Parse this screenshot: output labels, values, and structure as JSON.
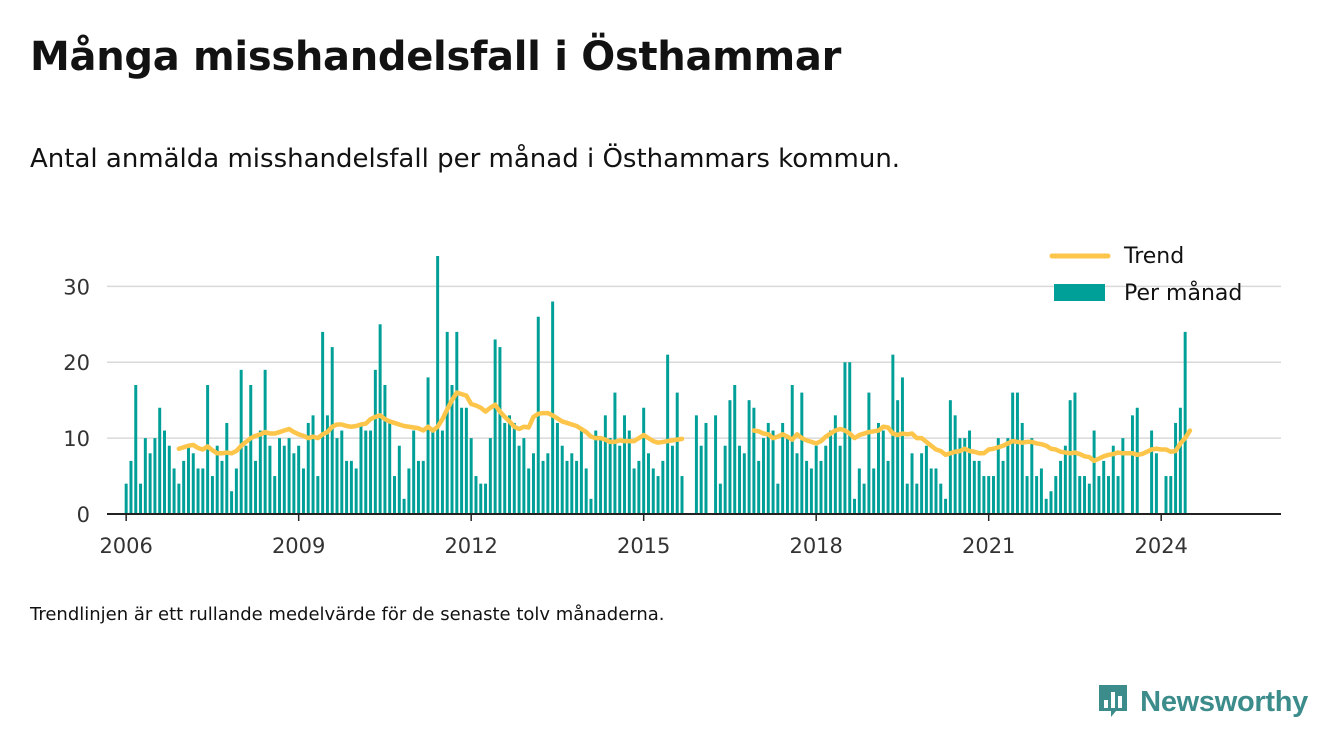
{
  "title": "Många misshandelsfall i Östhammar",
  "subtitle": "Antal anmälda misshandelsfall per månad i Östhammars kommun.",
  "footnote": "Trendlinjen är ett rullande medelvärde för de senaste tolv månaderna.",
  "brand": {
    "name": "Newsworthy"
  },
  "colors": {
    "bar": "#00a098",
    "trend": "#fec54b",
    "grid": "#d9d9d9",
    "axis": "#222222",
    "brand": "#3b8c8a"
  },
  "chart_data": {
    "type": "bar",
    "title": "Många misshandelsfall i Östhammar",
    "xlabel": "",
    "ylabel": "",
    "ylim": [
      0,
      34
    ],
    "xlim": [
      "2005-09",
      "2026-02"
    ],
    "grid": true,
    "legend_position": "top-right",
    "x_ticks": [
      "2006",
      "2009",
      "2012",
      "2015",
      "2018",
      "2021",
      "2024"
    ],
    "y_ticks": [
      0,
      10,
      20,
      30
    ],
    "start_month": "2006-01",
    "series": [
      {
        "name": "Per månad",
        "type": "bar",
        "values": [
          4,
          7,
          17,
          4,
          10,
          8,
          10,
          14,
          11,
          9,
          6,
          4,
          7,
          9,
          8,
          6,
          6,
          17,
          5,
          9,
          7,
          12,
          3,
          6,
          19,
          9,
          17,
          7,
          11,
          19,
          9,
          5,
          10,
          9,
          10,
          8,
          9,
          6,
          12,
          13,
          5,
          24,
          13,
          22,
          10,
          11,
          7,
          7,
          6,
          12,
          11,
          11,
          19,
          25,
          17,
          12,
          5,
          9,
          2,
          6,
          11,
          7,
          7,
          18,
          11,
          34,
          11,
          24,
          17,
          24,
          14,
          14,
          10,
          5,
          4,
          4,
          10,
          23,
          22,
          12,
          13,
          12,
          9,
          10,
          6,
          8,
          26,
          7,
          8,
          28,
          12,
          9,
          7,
          8,
          7,
          11,
          6,
          2,
          11,
          10,
          13,
          10,
          16,
          9,
          13,
          11,
          6,
          7,
          14,
          8,
          6,
          5,
          7,
          21,
          9,
          16,
          5,
          null,
          null,
          13,
          9,
          12,
          null,
          13,
          4,
          9,
          15,
          17,
          9,
          8,
          15,
          14,
          7,
          10,
          12,
          11,
          4,
          12,
          10,
          17,
          8,
          16,
          7,
          6,
          9,
          7,
          9,
          11,
          13,
          9,
          20,
          20,
          2,
          6,
          4,
          16,
          6,
          12,
          11,
          7,
          21,
          15,
          18,
          4,
          8,
          4,
          8,
          9,
          6,
          6,
          4,
          2,
          15,
          13,
          10,
          10,
          11,
          7,
          7,
          5,
          5,
          5,
          10,
          7,
          10,
          16,
          16,
          12,
          5,
          10,
          5,
          6,
          2,
          3,
          5,
          7,
          9,
          15,
          16,
          5,
          5,
          4,
          11,
          5,
          7,
          5,
          9,
          5,
          10,
          null,
          13,
          14,
          null,
          null,
          11,
          8,
          null,
          5,
          5,
          12,
          14,
          24
        ]
      },
      {
        "name": "Trend",
        "type": "line",
        "values": [
          null,
          null,
          null,
          null,
          null,
          null,
          null,
          null,
          null,
          null,
          null,
          8.6,
          8.8,
          9.0,
          9.1,
          8.7,
          8.5,
          8.9,
          8.4,
          8.0,
          8.0,
          8.1,
          8.0,
          8.3,
          9.0,
          9.5,
          10.0,
          10.3,
          10.5,
          10.8,
          10.6,
          10.6,
          10.8,
          11.0,
          11.2,
          10.8,
          10.5,
          10.3,
          10.0,
          10.2,
          10.0,
          10.5,
          10.8,
          11.5,
          11.8,
          11.8,
          11.6,
          11.5,
          11.6,
          11.8,
          11.9,
          12.5,
          12.8,
          13.0,
          12.5,
          12.2,
          12.0,
          11.8,
          11.6,
          11.5,
          11.4,
          11.3,
          11.0,
          11.5,
          11.0,
          11.5,
          12.5,
          13.8,
          15.0,
          16.0,
          15.8,
          15.6,
          14.5,
          14.3,
          14.0,
          13.5,
          14.0,
          14.4,
          13.5,
          12.8,
          12.2,
          11.5,
          11.2,
          11.5,
          11.4,
          12.8,
          13.2,
          13.3,
          13.3,
          13.0,
          12.6,
          12.2,
          12.0,
          11.8,
          11.6,
          11.2,
          10.8,
          10.2,
          10.0,
          10.0,
          9.8,
          9.5,
          9.5,
          9.7,
          9.6,
          9.6,
          9.6,
          10.0,
          10.4,
          10.0,
          9.6,
          9.4,
          9.5,
          9.6,
          9.7,
          9.8,
          9.9,
          null,
          null,
          null,
          null,
          null,
          null,
          null,
          null,
          null,
          null,
          null,
          null,
          null,
          null,
          11.0,
          10.9,
          10.6,
          10.5,
          10.0,
          10.2,
          10.5,
          10.2,
          9.8,
          10.5,
          10.0,
          9.7,
          9.5,
          9.3,
          9.6,
          10.2,
          10.6,
          11.0,
          11.2,
          11.0,
          10.6,
          10.0,
          10.4,
          10.6,
          10.8,
          10.9,
          11.0,
          11.5,
          11.4,
          10.6,
          10.4,
          10.6,
          10.5,
          10.6,
          10.0,
          10.0,
          9.5,
          9.0,
          8.5,
          8.3,
          7.8,
          8.0,
          8.2,
          8.3,
          8.6,
          8.3,
          8.2,
          8.0,
          8.0,
          8.5,
          8.6,
          8.8,
          9.0,
          9.3,
          9.6,
          9.5,
          9.4,
          9.5,
          9.5,
          9.3,
          9.2,
          9.0,
          8.6,
          8.5,
          8.2,
          8.1,
          8.0,
          8.1,
          7.9,
          7.6,
          7.5,
          7.0,
          7.3,
          7.6,
          7.8,
          7.9,
          8.1,
          8.0,
          8.0,
          8.0,
          7.8,
          7.9,
          8.2,
          8.5,
          8.6,
          8.5,
          8.5,
          8.2,
          8.3,
          9.3,
          10.0,
          11.0
        ]
      }
    ]
  }
}
